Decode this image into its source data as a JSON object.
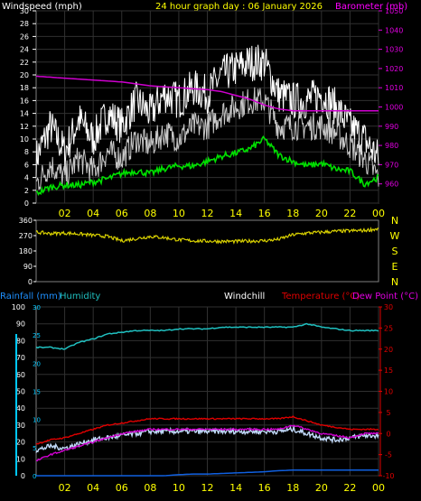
{
  "header": {
    "wind_title": "Windspeed (mph)",
    "graph_title": "24 hour graph day : 06 January 2026",
    "baro_title": "Barometer (mb)"
  },
  "colors": {
    "gust": "#ffffff",
    "wind": "#c8c8c8",
    "avg_wind": "#00e000",
    "barometer": "#d000d0",
    "direction": "#d8d000",
    "temperature": "#e00000",
    "dewpoint": "#d000d0",
    "windchill": "#c0d8f8",
    "humidity": "#20c0c0",
    "rainfall": "#1060e0",
    "rain_axis": "#00c8ff",
    "baro_axis": "#e000e0",
    "temp_axis": "#e00000",
    "grid": "#303030",
    "hour_text": "#ffff00"
  },
  "chart_data": [
    {
      "type": "line",
      "title": "24 hour graph day : 06 January 2026",
      "ylabel": "Windspeed (mph)",
      "y2label": "Barometer (mb)",
      "ylim": [
        0,
        30
      ],
      "y2lim": [
        950,
        1050
      ],
      "yticks": [
        0,
        2,
        4,
        6,
        8,
        10,
        12,
        14,
        16,
        18,
        20,
        22,
        24,
        26,
        28,
        30
      ],
      "y2ticks": [
        960,
        970,
        980,
        990,
        1000,
        1010,
        1020,
        1030,
        1040,
        1050
      ],
      "xlim": [
        0,
        24
      ],
      "xtick_labels": [
        "02",
        "04",
        "06",
        "08",
        "10",
        "12",
        "14",
        "16",
        "18",
        "20",
        "22",
        "00"
      ],
      "grid": true,
      "series": [
        {
          "name": "Gust",
          "x": [
            0,
            1,
            2,
            3,
            4,
            5,
            6,
            7,
            8,
            9,
            10,
            11,
            12,
            13,
            14,
            15,
            16,
            17,
            18,
            19,
            20,
            21,
            22,
            23,
            24
          ],
          "values": [
            7,
            12,
            8,
            13,
            10,
            14,
            12,
            16,
            14,
            17,
            16,
            18,
            17,
            20,
            21,
            22,
            22,
            17,
            16,
            16,
            17,
            15,
            12,
            10,
            7
          ]
        },
        {
          "name": "Windspeed",
          "x": [
            0,
            1,
            2,
            3,
            4,
            5,
            6,
            7,
            8,
            9,
            10,
            11,
            12,
            13,
            14,
            15,
            16,
            17,
            18,
            19,
            20,
            21,
            22,
            23,
            24
          ],
          "values": [
            3,
            6,
            4,
            7,
            5,
            8,
            7,
            10,
            9,
            11,
            10,
            12,
            12,
            14,
            15,
            16,
            16,
            12,
            12,
            12,
            12,
            11,
            9,
            7,
            4
          ]
        },
        {
          "name": "Average",
          "x": [
            0,
            1,
            2,
            3,
            4,
            5,
            6,
            7,
            8,
            9,
            10,
            11,
            12,
            13,
            14,
            15,
            16,
            17,
            18,
            19,
            20,
            21,
            22,
            23,
            24
          ],
          "values": [
            1.5,
            2.5,
            2.8,
            2.8,
            3.3,
            3.8,
            4.6,
            5,
            4.6,
            5.4,
            5.8,
            5.8,
            6.5,
            7.3,
            7.8,
            8.5,
            10,
            7.5,
            6.5,
            5.8,
            6.2,
            5.3,
            5,
            3,
            4
          ]
        },
        {
          "name": "Barometer",
          "x": [
            0,
            1,
            2,
            3,
            4,
            5,
            6,
            7,
            8,
            9,
            10,
            11,
            12,
            13,
            14,
            15,
            16,
            17,
            18,
            19,
            20,
            21,
            22,
            23,
            24
          ],
          "values": [
            1016,
            1015.5,
            1015,
            1014.5,
            1014,
            1013.5,
            1013,
            1012,
            1011,
            1010.5,
            1010,
            1009.5,
            1009,
            1008,
            1006,
            1004,
            1001,
            999,
            998,
            998,
            998,
            998,
            998,
            998,
            998
          ]
        }
      ]
    },
    {
      "type": "line",
      "ylim": [
        0,
        360
      ],
      "yticks": [
        0,
        90,
        180,
        270,
        360
      ],
      "compass_labels": [
        "N",
        "W",
        "S",
        "E",
        "N"
      ],
      "xlim": [
        0,
        24
      ],
      "series": [
        {
          "name": "Wind Direction",
          "x": [
            0,
            1,
            2,
            3,
            4,
            5,
            6,
            7,
            8,
            9,
            10,
            11,
            12,
            13,
            14,
            15,
            16,
            17,
            18,
            19,
            20,
            21,
            22,
            23,
            24
          ],
          "values": [
            290,
            282,
            285,
            280,
            272,
            265,
            240,
            252,
            265,
            258,
            245,
            240,
            238,
            236,
            236,
            238,
            240,
            248,
            275,
            285,
            290,
            295,
            298,
            300,
            310
          ]
        }
      ]
    },
    {
      "type": "line",
      "legend": [
        "Rainfall (mm)",
        "Humidity",
        "Windchill",
        "Temperature (°C)",
        "Dew Point (°C)"
      ],
      "rain_ticks": [
        0,
        5,
        10,
        15,
        20,
        25,
        30
      ],
      "humidity_ticks": [
        0,
        10,
        20,
        30,
        40,
        50,
        60,
        70,
        80,
        90,
        100
      ],
      "temp_ticks": [
        -10,
        -5,
        0,
        5,
        10,
        15,
        20,
        25,
        30
      ],
      "ylim_rain": [
        0,
        30
      ],
      "ylim_humidity": [
        0,
        100
      ],
      "ylim_temp": [
        -10,
        30
      ],
      "xlim": [
        0,
        24
      ],
      "xtick_labels": [
        "02",
        "04",
        "06",
        "08",
        "10",
        "12",
        "14",
        "16",
        "18",
        "20",
        "22",
        "00"
      ],
      "grid": true,
      "series": [
        {
          "name": "Humidity",
          "x": [
            0,
            1,
            2,
            3,
            4,
            5,
            6,
            7,
            8,
            9,
            10,
            11,
            12,
            13,
            14,
            15,
            16,
            17,
            18,
            19,
            20,
            21,
            22,
            23,
            24
          ],
          "values": [
            76,
            76,
            75,
            79,
            81,
            84,
            85,
            86,
            86,
            86,
            87,
            87,
            87,
            88,
            88,
            88,
            88,
            88,
            88,
            90,
            88,
            87,
            86,
            86,
            86
          ]
        },
        {
          "name": "Temperature",
          "x": [
            0,
            1,
            2,
            3,
            4,
            5,
            6,
            7,
            8,
            9,
            10,
            11,
            12,
            13,
            14,
            15,
            16,
            17,
            18,
            19,
            20,
            21,
            22,
            23,
            24
          ],
          "values": [
            -2.5,
            -1.5,
            -1,
            0,
            1,
            2,
            2.5,
            3,
            3.5,
            3.5,
            3.5,
            3.5,
            3.5,
            3.5,
            3.5,
            3.5,
            3.5,
            3.5,
            4,
            3,
            2,
            1.5,
            1,
            1,
            1
          ]
        },
        {
          "name": "Dew Point",
          "x": [
            0,
            1,
            2,
            3,
            4,
            5,
            6,
            7,
            8,
            9,
            10,
            11,
            12,
            13,
            14,
            15,
            16,
            17,
            18,
            19,
            20,
            21,
            22,
            23,
            24
          ],
          "values": [
            -6.5,
            -5,
            -4,
            -3,
            -2,
            -1,
            0,
            0.5,
            1,
            1,
            1,
            1,
            1,
            1,
            1,
            1,
            1,
            1,
            2,
            1,
            0,
            -0.5,
            -1,
            0,
            0
          ]
        },
        {
          "name": "Windchill",
          "x": [
            0,
            1,
            2,
            3,
            4,
            5,
            6,
            7,
            8,
            9,
            10,
            11,
            12,
            13,
            14,
            15,
            16,
            17,
            18,
            19,
            20,
            21,
            22,
            23,
            24
          ],
          "values": [
            -4,
            -3,
            -3.5,
            -2.5,
            -1.5,
            -1,
            -0.5,
            0,
            0.5,
            0.5,
            0.5,
            0.5,
            0.5,
            0.5,
            0.5,
            0.5,
            0.5,
            0.5,
            1,
            0,
            -1,
            -1.5,
            -1,
            -0.5,
            -0.5
          ]
        },
        {
          "name": "Rainfall",
          "x": [
            0,
            1,
            2,
            3,
            4,
            5,
            6,
            7,
            8,
            9,
            10,
            11,
            12,
            13,
            14,
            15,
            16,
            17,
            18,
            19,
            20,
            21,
            22,
            23,
            24
          ],
          "values": [
            0,
            0,
            0,
            0,
            0,
            0,
            0,
            0,
            0,
            0,
            0.2,
            0.3,
            0.3,
            0.4,
            0.5,
            0.6,
            0.7,
            0.9,
            1,
            1,
            1,
            1,
            1,
            1,
            1
          ]
        }
      ]
    }
  ]
}
